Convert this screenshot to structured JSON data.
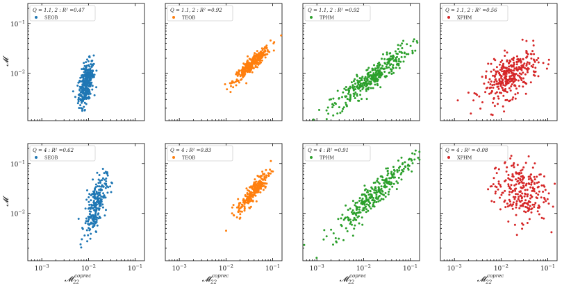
{
  "figure": {
    "ylabel": "𝓜",
    "xlabel_base": "𝓜̄",
    "xlabel_sub": "22",
    "xlabel_sup": "coprec"
  },
  "chart_data": [
    {
      "type": "scatter",
      "row": 0,
      "col": 0,
      "title": "Q = 1.1, 2 : R² =0.47",
      "series": [
        {
          "name": "SEOB",
          "color": "#1f77b4",
          "center": [
            -2.05,
            -2.2
          ],
          "spread": [
            0.08,
            0.22
          ],
          "corr": 0.5,
          "n": 320
        }
      ],
      "xscale": "log",
      "yscale": "log",
      "xlim": [
        -3.3,
        -0.8
      ],
      "ylim": [
        -2.95,
        -0.6
      ],
      "xticks": [
        -3,
        -2,
        -1
      ],
      "yticks": [
        -2,
        -1
      ]
    },
    {
      "type": "scatter",
      "row": 0,
      "col": 1,
      "title": "Q = 1.1, 2 : R² =0.92",
      "series": [
        {
          "name": "TEOB",
          "color": "#ff7f0e",
          "center": [
            -1.45,
            -1.82
          ],
          "spread": [
            0.2,
            0.18
          ],
          "corr": 0.92,
          "n": 320
        }
      ],
      "xscale": "log",
      "yscale": "log",
      "xlim": [
        -3.3,
        -0.8
      ],
      "ylim": [
        -2.95,
        -0.6
      ],
      "xticks": [
        -3,
        -2,
        -1
      ],
      "yticks": [
        -2,
        -1
      ]
    },
    {
      "type": "scatter",
      "row": 0,
      "col": 2,
      "title": "Q = 1.1, 2 : R² =0.92",
      "series": [
        {
          "name": "TPHM",
          "color": "#2ca02c",
          "center": [
            -1.85,
            -2.1
          ],
          "spread": [
            0.42,
            0.32
          ],
          "corr": 0.92,
          "n": 340
        }
      ],
      "xscale": "log",
      "yscale": "log",
      "xlim": [
        -3.3,
        -0.8
      ],
      "ylim": [
        -2.95,
        -0.6
      ],
      "xticks": [
        -3,
        -2,
        -1
      ],
      "yticks": [
        -2,
        -1
      ]
    },
    {
      "type": "scatter",
      "row": 0,
      "col": 3,
      "title": "Q = 1.1, 2 : R² =0.56",
      "series": [
        {
          "name": "XPHM",
          "color": "#d62728",
          "center": [
            -1.8,
            -2.05
          ],
          "spread": [
            0.3,
            0.25
          ],
          "corr": 0.56,
          "n": 340
        }
      ],
      "xscale": "log",
      "yscale": "log",
      "xlim": [
        -3.3,
        -0.8
      ],
      "ylim": [
        -2.95,
        -0.6
      ],
      "xticks": [
        -3,
        -2,
        -1
      ],
      "yticks": [
        -2,
        -1
      ]
    },
    {
      "type": "scatter",
      "row": 1,
      "col": 0,
      "title": "Q = 4 : R² =0.62",
      "series": [
        {
          "name": "SEOB",
          "color": "#1f77b4",
          "center": [
            -1.85,
            -1.85
          ],
          "spread": [
            0.12,
            0.3
          ],
          "corr": 0.62,
          "n": 230
        }
      ],
      "xscale": "log",
      "yscale": "log",
      "xlim": [
        -3.3,
        -0.8
      ],
      "ylim": [
        -2.95,
        -0.6
      ],
      "xticks": [
        -3,
        -2,
        -1
      ],
      "yticks": [
        -2,
        -1
      ]
    },
    {
      "type": "scatter",
      "row": 1,
      "col": 1,
      "title": "Q = 4 : R² =0.83",
      "series": [
        {
          "name": "TEOB",
          "color": "#ff7f0e",
          "center": [
            -1.4,
            -1.55
          ],
          "spread": [
            0.18,
            0.22
          ],
          "corr": 0.88,
          "n": 230
        }
      ],
      "xscale": "log",
      "yscale": "log",
      "xlim": [
        -3.3,
        -0.8
      ],
      "ylim": [
        -2.95,
        -0.6
      ],
      "xticks": [
        -3,
        -2,
        -1
      ],
      "yticks": [
        -2,
        -1
      ]
    },
    {
      "type": "scatter",
      "row": 1,
      "col": 2,
      "title": "Q = 4 : R² =0.91",
      "series": [
        {
          "name": "TPHM",
          "color": "#2ca02c",
          "center": [
            -1.75,
            -1.6
          ],
          "spread": [
            0.45,
            0.42
          ],
          "corr": 0.94,
          "n": 300
        }
      ],
      "xscale": "log",
      "yscale": "log",
      "xlim": [
        -3.3,
        -0.8
      ],
      "ylim": [
        -2.95,
        -0.6
      ],
      "xticks": [
        -3,
        -2,
        -1
      ],
      "yticks": [
        -2,
        -1
      ]
    },
    {
      "type": "scatter",
      "row": 1,
      "col": 3,
      "title": "Q = 4 : R² =-0.08",
      "series": [
        {
          "name": "XPHM",
          "color": "#d62728",
          "center": [
            -1.6,
            -1.55
          ],
          "spread": [
            0.3,
            0.3
          ],
          "corr": -0.1,
          "n": 260
        }
      ],
      "xscale": "log",
      "yscale": "log",
      "xlim": [
        -3.3,
        -0.8
      ],
      "ylim": [
        -2.95,
        -0.6
      ],
      "xticks": [
        -3,
        -2,
        -1
      ],
      "yticks": [
        -2,
        -1
      ]
    }
  ]
}
